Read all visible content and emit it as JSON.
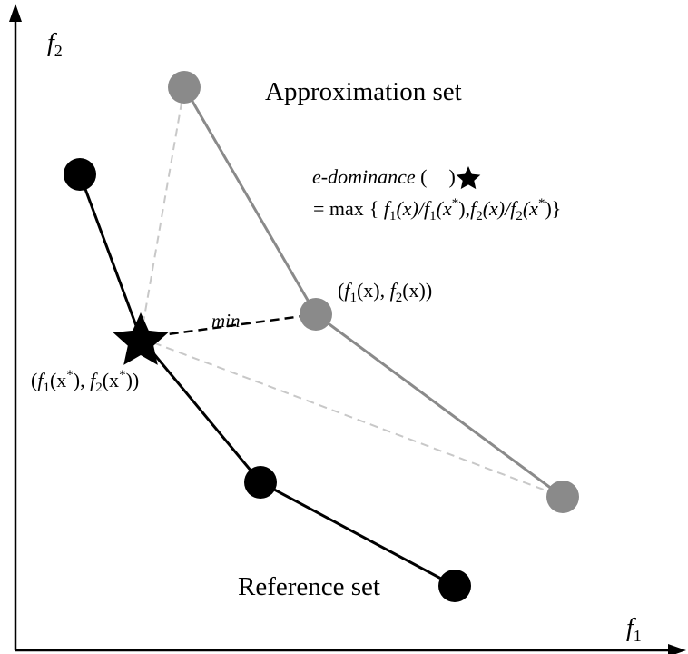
{
  "axes": {
    "x_symbol": "f",
    "x_sub": "1",
    "y_symbol": "f",
    "y_sub": "2"
  },
  "labels": {
    "approximation_set": "Approximation set",
    "reference_set": "Reference set",
    "min": "min",
    "edom_name": "e-dominance",
    "edom_open": " (",
    "edom_close": ")",
    "edom_formula_prefix": "= max",
    "point_approx": {
      "open": "(",
      "f1": "f",
      "sub1": "1",
      "x1": "(x), ",
      "f2": "f",
      "sub2": "2",
      "x2": "(x))"
    },
    "point_ref": {
      "open": "(",
      "f1": "f",
      "sub1": "1",
      "x1a": "(x",
      "star1": "*",
      "x1b": "), ",
      "f2": "f",
      "sub2": "2",
      "x2a": "(x",
      "star2": "*",
      "x2b": "))"
    },
    "formula": {
      "brace_open": "{ ",
      "f1": "f",
      "s1": "1",
      "x": "(x)/",
      "f1b": "f",
      "s1b": "1",
      "xs": "(x",
      "star": "*",
      "close1": "),",
      "f2": "f",
      "s2": "2",
      "x2": "(x)/",
      "f2b": "f",
      "s2b": "2",
      "xs2": "(x",
      "star2": "*",
      "close2": ")}"
    }
  },
  "colors": {
    "reference": "#000000",
    "approximation": "#8a8a8a",
    "dashed_light": "#c8c8c8"
  }
}
